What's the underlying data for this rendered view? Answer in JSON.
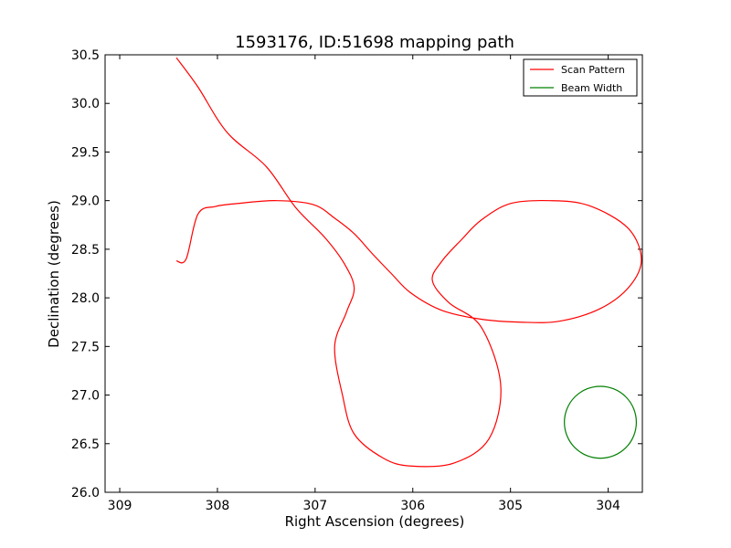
{
  "chart_data": {
    "type": "line",
    "title": "1593176, ID:51698 mapping path",
    "xlabel": "Right Ascension (degrees)",
    "ylabel": "Declination (degrees)",
    "xlim": [
      309.15,
      303.65
    ],
    "ylim": [
      26.0,
      30.5
    ],
    "x_reversed": true,
    "xticks": [
      309,
      308,
      307,
      306,
      305,
      304
    ],
    "xtick_labels": [
      "309",
      "308",
      "307",
      "306",
      "305",
      "304"
    ],
    "yticks": [
      26.0,
      26.5,
      27.0,
      27.5,
      28.0,
      28.5,
      29.0,
      29.5,
      30.0,
      30.5
    ],
    "ytick_labels": [
      "26.0",
      "26.5",
      "27.0",
      "27.5",
      "28.0",
      "28.5",
      "29.0",
      "29.5",
      "30.0",
      "30.5"
    ],
    "grid": false,
    "legend_position": "top-right",
    "series": [
      {
        "name": "Scan Pattern",
        "color": "#ff0000",
        "x": [
          308.42,
          308.32,
          308.2,
          308.02,
          307.8,
          307.4,
          307.02,
          306.8,
          306.6,
          306.42,
          306.22,
          306.02,
          305.7,
          305.3,
          304.9,
          304.5,
          304.08,
          303.78,
          303.66,
          303.8,
          304.2,
          304.6,
          305.0,
          305.3,
          305.5,
          305.7,
          305.8,
          305.63,
          305.3,
          305.1,
          305.22,
          305.58,
          306.02,
          306.3,
          306.6,
          306.72,
          306.8,
          306.68,
          306.6,
          306.7,
          306.9,
          307.2,
          307.5,
          307.9,
          308.2,
          308.42
        ],
        "y": [
          28.38,
          28.4,
          28.86,
          28.94,
          28.97,
          29.0,
          28.96,
          28.82,
          28.66,
          28.46,
          28.25,
          28.05,
          27.87,
          27.78,
          27.75,
          27.76,
          27.89,
          28.12,
          28.4,
          28.72,
          28.95,
          29.0,
          28.97,
          28.8,
          28.6,
          28.38,
          28.18,
          27.95,
          27.7,
          27.1,
          26.55,
          26.3,
          26.27,
          26.35,
          26.6,
          27.0,
          27.5,
          27.85,
          28.1,
          28.35,
          28.62,
          28.93,
          29.35,
          29.7,
          30.17,
          30.47
        ]
      },
      {
        "name": "Beam Width",
        "color": "#008000",
        "center_x": 304.08,
        "center_y": 26.72,
        "radius_dec": 0.37
      }
    ]
  }
}
